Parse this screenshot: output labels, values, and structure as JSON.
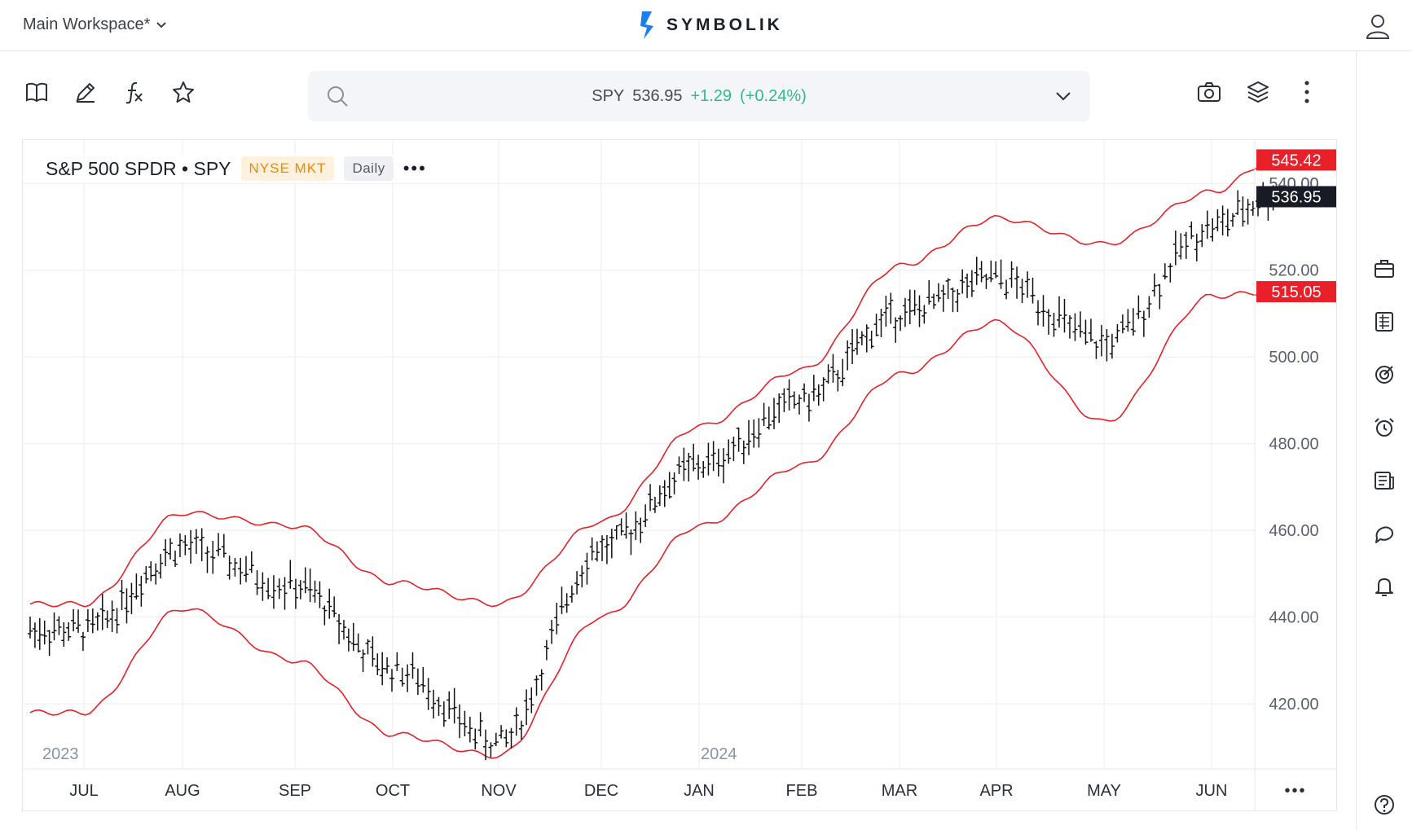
{
  "workspace": {
    "label": "Main Workspace*"
  },
  "brand": {
    "name": "SYMBOLIK"
  },
  "symbol_bar": {
    "symbol": "SPY",
    "price": "536.95",
    "change": "+1.29",
    "change_pct": "(+0.24%)"
  },
  "chart_header": {
    "title": "S&P 500 SPDR • SPY",
    "exchange": "NYSE MKT",
    "interval": "Daily",
    "more": "•••"
  },
  "price_labels": {
    "upper_band": "545.42",
    "last": "536.95",
    "lower_band": "515.05",
    "upper_partial": "540.00"
  },
  "colors": {
    "band": "#e8202a",
    "up": "#2ebd85",
    "accent": "#f08a00",
    "last_bg": "#161b26"
  },
  "icons": {
    "toolbar": [
      "book-icon",
      "pencil-icon",
      "function-icon",
      "star-icon"
    ],
    "toolbar_right": [
      "camera-icon",
      "layers-icon",
      "kebab-icon"
    ],
    "rail": [
      "briefcase-icon",
      "list-icon",
      "target-icon",
      "alarm-icon",
      "news-icon",
      "chat-icon",
      "bell-icon",
      "help-icon"
    ]
  },
  "chart_data": {
    "type": "line",
    "y_ticks": [
      "540.00",
      "520.00",
      "500.00",
      "480.00",
      "460.00",
      "440.00",
      "420.00"
    ],
    "y_tick_values": [
      540,
      520,
      500,
      480,
      460,
      440,
      420
    ],
    "ylim": [
      405,
      550
    ],
    "x_ticks": [
      "JUL",
      "AUG",
      "SEP",
      "OCT",
      "NOV",
      "DEC",
      "JAN",
      "FEB",
      "MAR",
      "APR",
      "MAY",
      "JUN"
    ],
    "year_labels": [
      "2023",
      "2024"
    ],
    "x_more": "•••",
    "grid": true,
    "series": [
      {
        "x": [
          0,
          1,
          2,
          3,
          4,
          5,
          6,
          7,
          8,
          9,
          10,
          11,
          11.6
        ],
        "values": [
          437,
          456,
          447,
          428,
          411,
          456,
          475,
          490,
          510,
          518,
          503,
          530,
          536.95
        ]
      },
      {
        "x": [
          0,
          1,
          2,
          3,
          4,
          5,
          6,
          7,
          8,
          9,
          10,
          11,
          11.6
        ],
        "values": [
          443,
          464,
          461,
          448,
          443,
          462,
          484,
          497,
          521,
          532,
          526,
          538,
          545.42
        ]
      },
      {
        "x": [
          0,
          1,
          2,
          3,
          4,
          5,
          6,
          7,
          8,
          9,
          10,
          11,
          11.6
        ],
        "values": [
          418,
          442,
          430,
          413,
          408,
          440,
          461,
          475,
          496,
          508,
          485,
          514,
          515.05
        ]
      }
    ]
  }
}
